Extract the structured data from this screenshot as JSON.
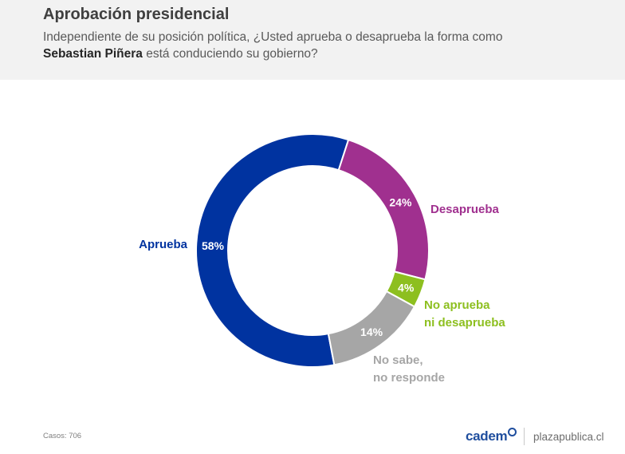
{
  "header": {
    "title": "Aprobación presidencial",
    "subtitle_part1": "Independiente de su posición política, ¿Usted aprueba o desaprueba la forma como",
    "subtitle_name": "Sebastian Piñera",
    "subtitle_part2": "está conduciendo su gobierno?"
  },
  "footer": {
    "casos": "Casos: 706",
    "brand": "cadem",
    "site": "plazapublica.cl"
  },
  "chart_data": {
    "type": "pie",
    "style": "donut",
    "title": "Aprobación presidencial",
    "series": [
      {
        "name": "Aprueba",
        "label_lines": [
          "Aprueba"
        ],
        "value": 58,
        "value_label": "58%",
        "color": "#0033a0"
      },
      {
        "name": "Desaprueba",
        "label_lines": [
          "Desaprueba"
        ],
        "value": 24,
        "value_label": "24%",
        "color": "#a0308f"
      },
      {
        "name": "No aprueba ni desaprueba",
        "label_lines": [
          "No aprueba",
          "ni desaprueba"
        ],
        "value": 4,
        "value_label": "4%",
        "color": "#8dbf1f"
      },
      {
        "name": "No sabe, no responde",
        "label_lines": [
          "No sabe,",
          "no responde"
        ],
        "value": 14,
        "value_label": "14%",
        "color": "#a6a6a6"
      }
    ],
    "start_value_offset": 47,
    "direction": "clockwise"
  }
}
